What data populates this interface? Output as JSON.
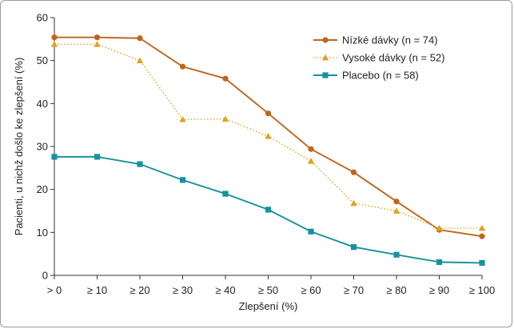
{
  "chart_data": {
    "type": "line",
    "xlabel": "Zlepšení (%)",
    "ylabel": "Pacienti, u nichž došlo ke zlepšení (%)",
    "categories": [
      "> 0",
      "≥ 10",
      "≥ 20",
      "≥ 30",
      "≥ 40",
      "≥ 50",
      "≥ 60",
      "≥ 70",
      "≥ 80",
      "≥ 90",
      "≥ 100"
    ],
    "ylim": [
      0,
      60
    ],
    "yticks": [
      0,
      10,
      20,
      30,
      40,
      50,
      60
    ],
    "grid": false,
    "legend_position": "top-right",
    "series": [
      {
        "name": "Nízké dávky (n = 74)",
        "color": "#c0651c",
        "marker": "circle",
        "line_style": "solid",
        "values": [
          55.4,
          55.4,
          55.2,
          48.6,
          45.8,
          37.7,
          29.4,
          24.0,
          17.2,
          10.6,
          9.1
        ]
      },
      {
        "name": "Vysoké dávky (n = 52)",
        "color": "#e0a31c",
        "marker": "triangle",
        "line_style": "dotted",
        "values": [
          53.8,
          53.8,
          50.0,
          36.3,
          36.4,
          32.4,
          26.6,
          16.8,
          15.0,
          11.0,
          11.0
        ]
      },
      {
        "name": "Placebo (n = 58)",
        "color": "#16929e",
        "marker": "square",
        "line_style": "solid",
        "values": [
          27.6,
          27.6,
          25.9,
          22.2,
          19.0,
          15.3,
          10.2,
          6.6,
          4.8,
          3.1,
          2.9
        ]
      }
    ]
  }
}
